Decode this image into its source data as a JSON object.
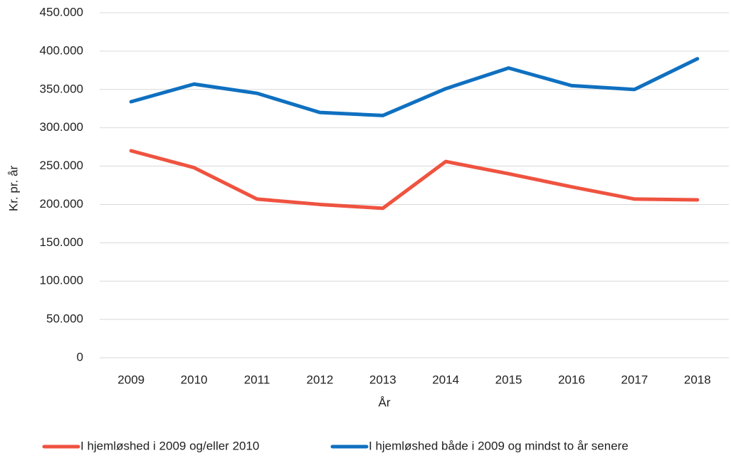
{
  "chart_data": {
    "type": "line",
    "categories": [
      "2009",
      "2010",
      "2011",
      "2012",
      "2013",
      "2014",
      "2015",
      "2016",
      "2017",
      "2018"
    ],
    "series": [
      {
        "name": "I hjemløshed i 2009 og/eller 2010",
        "color": "#ef5340",
        "values": [
          270000,
          248000,
          207000,
          200000,
          195000,
          256000,
          240000,
          223000,
          207000,
          206000
        ]
      },
      {
        "name": "I hjemløshed både i 2009 og mindst to år senere",
        "color": "#0f70c0",
        "values": [
          334000,
          357000,
          345000,
          320000,
          316000,
          351000,
          378000,
          355000,
          350000,
          390000
        ]
      }
    ],
    "xlabel": "År",
    "ylabel": "Kr. pr. år",
    "ylim": [
      0,
      450000
    ],
    "yticks": [
      0,
      {
        "value": 50000,
        "label": "50.000"
      },
      {
        "value": 100000,
        "label": "100.000"
      },
      {
        "value": 150000,
        "label": "150.000"
      },
      {
        "value": 200000,
        "label": "200.000"
      },
      {
        "value": 250000,
        "label": "250.000"
      },
      {
        "value": 300000,
        "label": "300.000"
      },
      {
        "value": 350000,
        "label": "350.000"
      },
      {
        "value": 400000,
        "label": "400.000"
      },
      {
        "value": 450000,
        "label": "450.000"
      }
    ],
    "grid": true,
    "legend": "bottom"
  }
}
